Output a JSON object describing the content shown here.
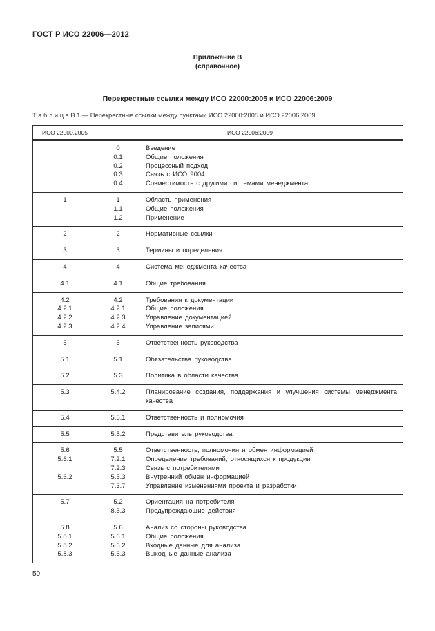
{
  "colors": {
    "text": "#222222",
    "border": "#2f2f2f",
    "background": "#ffffff"
  },
  "header": {
    "doc_number": "ГОСТ Р ИСО 22006—2012",
    "appendix_title": "Приложение В",
    "appendix_subtitle": "(справочное)",
    "section_title": "Перекрестные ссылки между ИСО 22000:2005 и ИСО 22006:2009",
    "table_caption": "Т а б л и ц а  В.1 — Перекрестные ссылки между пунктами ИСО 22000:2005 и ИСО 22006:2009"
  },
  "table": {
    "col1_header": "ИСО 22000.2005",
    "col2_header": "ИСО 22006:2009",
    "rows": [
      {
        "left": [],
        "mid": [
          "0",
          "0.1",
          "0.2",
          "0.3",
          "0.4"
        ],
        "right": [
          "Введение",
          "Общие положения",
          "Процессный подход",
          "Связь с ИСО 9004",
          "Совместимость с другими системами менеджмента"
        ]
      },
      {
        "left": [
          "1"
        ],
        "mid": [
          "1",
          "1.1",
          "1.2"
        ],
        "right": [
          "Область применения",
          "Общие положения",
          "Применение"
        ]
      },
      {
        "left": [
          "2"
        ],
        "mid": [
          "2"
        ],
        "right": [
          "Нормативные ссылки"
        ]
      },
      {
        "left": [
          "3"
        ],
        "mid": [
          "3"
        ],
        "right": [
          "Термины и определения"
        ]
      },
      {
        "left": [
          "4"
        ],
        "mid": [
          "4"
        ],
        "right": [
          "Система менеджмента качества"
        ]
      },
      {
        "left": [
          "4.1"
        ],
        "mid": [
          "4.1"
        ],
        "right": [
          "Общие требования"
        ]
      },
      {
        "left": [
          "4.2",
          "4.2.1",
          "4.2.2",
          "4.2.3"
        ],
        "mid": [
          "4.2",
          "4.2.1",
          "4.2.3",
          "4.2.4"
        ],
        "right": [
          "Требования к документации",
          "Общие положения",
          "Управление документацией",
          "Управление записями"
        ]
      },
      {
        "left": [
          "5"
        ],
        "mid": [
          "5"
        ],
        "right": [
          "Ответственность руководства"
        ]
      },
      {
        "left": [
          "5.1"
        ],
        "mid": [
          "5.1"
        ],
        "right": [
          "Обязательства руководства"
        ]
      },
      {
        "left": [
          "5.2"
        ],
        "mid": [
          "5.3"
        ],
        "right": [
          "Политика в области качества"
        ]
      },
      {
        "left": [
          "5.3"
        ],
        "mid": [
          "5.4.2"
        ],
        "right": [
          "Планирование создания, поддержания и улучшения системы менеджмента качества"
        ]
      },
      {
        "left": [
          "5.4"
        ],
        "mid": [
          "5.5.1"
        ],
        "right": [
          "Ответственность и полномочия"
        ]
      },
      {
        "left": [
          "5.5"
        ],
        "mid": [
          "5.5.2"
        ],
        "right": [
          "Представитель руководства"
        ]
      },
      {
        "left": [
          "5.6",
          "5.6.1",
          "",
          "5.6.2",
          ""
        ],
        "mid": [
          "5.5",
          "7.2.1",
          "7.2.3",
          "5.5.3",
          "7.3.7"
        ],
        "right": [
          "Ответственность, полномочия и обмен информацией",
          "Определение требований, относящихся к продукции",
          "Связь с потребителями",
          "Внутренний обмен информацией",
          "Управление изменениями проекта и разработки"
        ]
      },
      {
        "left": [
          "5.7",
          ""
        ],
        "mid": [
          "5.2",
          "8.5.3"
        ],
        "right": [
          "Ориентация на потребителя",
          "Предупреждающие действия"
        ]
      },
      {
        "left": [
          "5.8",
          "5.8.1",
          "5.8.2",
          "5.8.3"
        ],
        "mid": [
          "5.6",
          "5.6.1",
          "5.6.2",
          "5.6.3"
        ],
        "right": [
          "Анализ со стороны руководства",
          "Общие положения",
          "Входные данные для анализа",
          "Выходные данные анализа"
        ]
      }
    ]
  },
  "footer": {
    "page_number": "50"
  }
}
